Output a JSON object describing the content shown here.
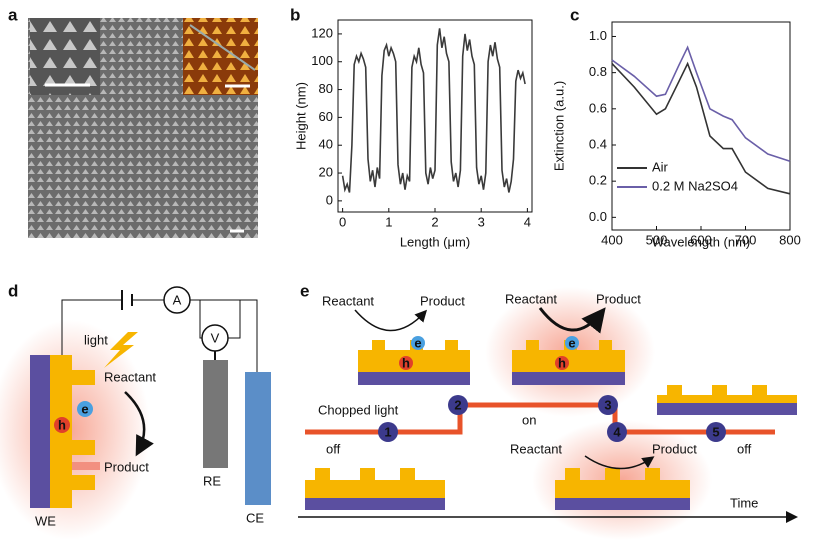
{
  "panel_a": {
    "label": "a"
  },
  "chart_data": [
    {
      "type": "line",
      "label": "b",
      "xlabel": "Length (μm)",
      "ylabel": "Height (nm)",
      "x": [
        0,
        0.05,
        0.1,
        0.15,
        0.2,
        0.25,
        0.3,
        0.35,
        0.4,
        0.45,
        0.5,
        0.55,
        0.6,
        0.65,
        0.7,
        0.75,
        0.8,
        0.85,
        0.9,
        0.95,
        1,
        1.05,
        1.1,
        1.15,
        1.2,
        1.25,
        1.3,
        1.35,
        1.4,
        1.45,
        1.5,
        1.55,
        1.6,
        1.65,
        1.7,
        1.75,
        1.8,
        1.85,
        1.9,
        1.95,
        2,
        2.05,
        2.1,
        2.15,
        2.2,
        2.25,
        2.3,
        2.35,
        2.4,
        2.45,
        2.5,
        2.55,
        2.6,
        2.65,
        2.7,
        2.75,
        2.8,
        2.85,
        2.9,
        2.95,
        3,
        3.05,
        3.1,
        3.15,
        3.2,
        3.25,
        3.3,
        3.35,
        3.4,
        3.45,
        3.5,
        3.55,
        3.6,
        3.65,
        3.7,
        3.75,
        3.8,
        3.85,
        3.9,
        3.95
      ],
      "series": [
        {
          "color": "#3a3a3a",
          "values": [
            18,
            8,
            12,
            6,
            40,
            98,
            104,
            100,
            106,
            102,
            96,
            30,
            14,
            22,
            10,
            24,
            16,
            90,
            108,
            112,
            104,
            110,
            106,
            100,
            26,
            12,
            20,
            8,
            18,
            14,
            96,
            104,
            100,
            110,
            98,
            92,
            20,
            12,
            24,
            16,
            22,
            112,
            124,
            110,
            118,
            106,
            100,
            28,
            14,
            20,
            10,
            22,
            104,
            120,
            108,
            116,
            104,
            98,
            24,
            12,
            18,
            8,
            20,
            100,
            112,
            104,
            114,
            102,
            96,
            22,
            10,
            16,
            6,
            14,
            30,
            86,
            94,
            88,
            92,
            84
          ]
        }
      ],
      "xlim": [
        -0.1,
        4.1
      ],
      "xticks": [
        0,
        1,
        2,
        3,
        4
      ],
      "ylim": [
        -8,
        130
      ],
      "yticks": [
        0,
        20,
        40,
        60,
        80,
        100,
        120
      ]
    },
    {
      "type": "line",
      "label": "c",
      "xlabel": "Wavelength (nm)",
      "ylabel": "Extinction (a.u.)",
      "x": [
        400,
        450,
        500,
        520,
        550,
        570,
        590,
        620,
        650,
        670,
        700,
        750,
        800
      ],
      "series": [
        {
          "name": "Air",
          "color": "#333333",
          "values": [
            0.85,
            0.72,
            0.57,
            0.6,
            0.75,
            0.85,
            0.72,
            0.45,
            0.38,
            0.38,
            0.25,
            0.16,
            0.13
          ]
        },
        {
          "name": "0.2 M Na2SO4",
          "color": "#6a5fa8",
          "values": [
            0.87,
            0.78,
            0.67,
            0.68,
            0.84,
            0.94,
            0.8,
            0.6,
            0.56,
            0.54,
            0.44,
            0.35,
            0.31
          ]
        }
      ],
      "xlim": [
        400,
        800
      ],
      "xticks": [
        400,
        500,
        600,
        700,
        800
      ],
      "ylim": [
        -0.07,
        1.08
      ],
      "yticks": [
        {
          "value": 0,
          "label": "0.0"
        },
        {
          "value": 0.2,
          "label": "0.2"
        },
        {
          "value": 0.4,
          "label": "0.4"
        },
        {
          "value": 0.6,
          "label": "0.6"
        },
        {
          "value": 0.8,
          "label": "0.8"
        },
        {
          "value": 1,
          "label": "1.0"
        }
      ],
      "legend": "lower left"
    }
  ],
  "panel_d": {
    "label": "d",
    "light": "light",
    "ammeter": "A",
    "voltmeter": "V",
    "reactant": "Reactant",
    "electron": "e",
    "hole": "h",
    "product": "Product",
    "we": "WE",
    "re": "RE",
    "ce": "CE"
  },
  "panel_e": {
    "label": "e",
    "reaction_pairs": [
      {
        "reactant": "Reactant",
        "product": "Product"
      },
      {
        "reactant": "Reactant",
        "product": "Product"
      },
      {
        "reactant": "Reactant",
        "product": "Product"
      }
    ],
    "carriers": [
      {
        "electron": "e",
        "hole": "h"
      },
      {
        "electron": "e",
        "hole": "h"
      }
    ],
    "chopped_light": "Chopped light",
    "states": [
      "off",
      "on",
      "off"
    ],
    "steps": [
      "1",
      "2",
      "3",
      "4",
      "5"
    ],
    "time_axis": "Time"
  }
}
